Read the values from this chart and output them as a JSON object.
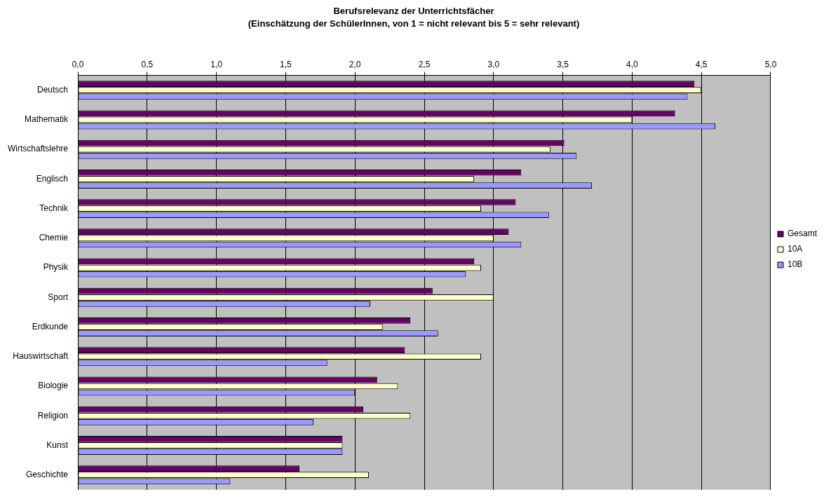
{
  "chart_data": {
    "type": "bar",
    "orientation": "horizontal",
    "title": "Berufsrelevanz der Unterrichtsfächer",
    "subtitle": "(Einschätzung der SchülerInnen, von 1 = nicht relevant bis 5 = sehr relevant)",
    "categories": [
      "Deutsch",
      "Mathematik",
      "Wirtschaftslehre",
      "Englisch",
      "Technik",
      "Chemie",
      "Physik",
      "Sport",
      "Erdkunde",
      "Hauswirtschaft",
      "Biologie",
      "Religion",
      "Kunst",
      "Geschichte"
    ],
    "series": [
      {
        "name": "Gesamt",
        "color": "#660066",
        "values": [
          4.45,
          4.31,
          3.51,
          3.2,
          3.16,
          3.11,
          2.86,
          2.56,
          2.4,
          2.36,
          2.16,
          2.06,
          1.91,
          1.6
        ]
      },
      {
        "name": "10A",
        "color": "#ffffcc",
        "values": [
          4.5,
          4.0,
          3.41,
          2.86,
          2.91,
          3.0,
          2.91,
          3.0,
          2.2,
          2.91,
          2.31,
          2.4,
          1.91,
          2.1
        ]
      },
      {
        "name": "10B",
        "color": "#9999ff",
        "values": [
          4.4,
          4.6,
          3.6,
          3.71,
          3.4,
          3.2,
          2.8,
          2.11,
          2.6,
          1.8,
          2.0,
          1.7,
          1.91,
          1.1
        ]
      }
    ],
    "xlim": [
      0,
      5
    ],
    "xticks": [
      {
        "value": 0,
        "label": "0,0"
      },
      {
        "value": 0.5,
        "label": "0,5"
      },
      {
        "value": 1,
        "label": "1,0"
      },
      {
        "value": 1.5,
        "label": "1,5"
      },
      {
        "value": 2,
        "label": "2,0"
      },
      {
        "value": 2.5,
        "label": "2,5"
      },
      {
        "value": 3,
        "label": "3,0"
      },
      {
        "value": 3.5,
        "label": "3,5"
      },
      {
        "value": 4,
        "label": "4,0"
      },
      {
        "value": 4.5,
        "label": "4,5"
      },
      {
        "value": 5,
        "label": "5,0"
      }
    ],
    "grid": "x",
    "legend": "right"
  }
}
